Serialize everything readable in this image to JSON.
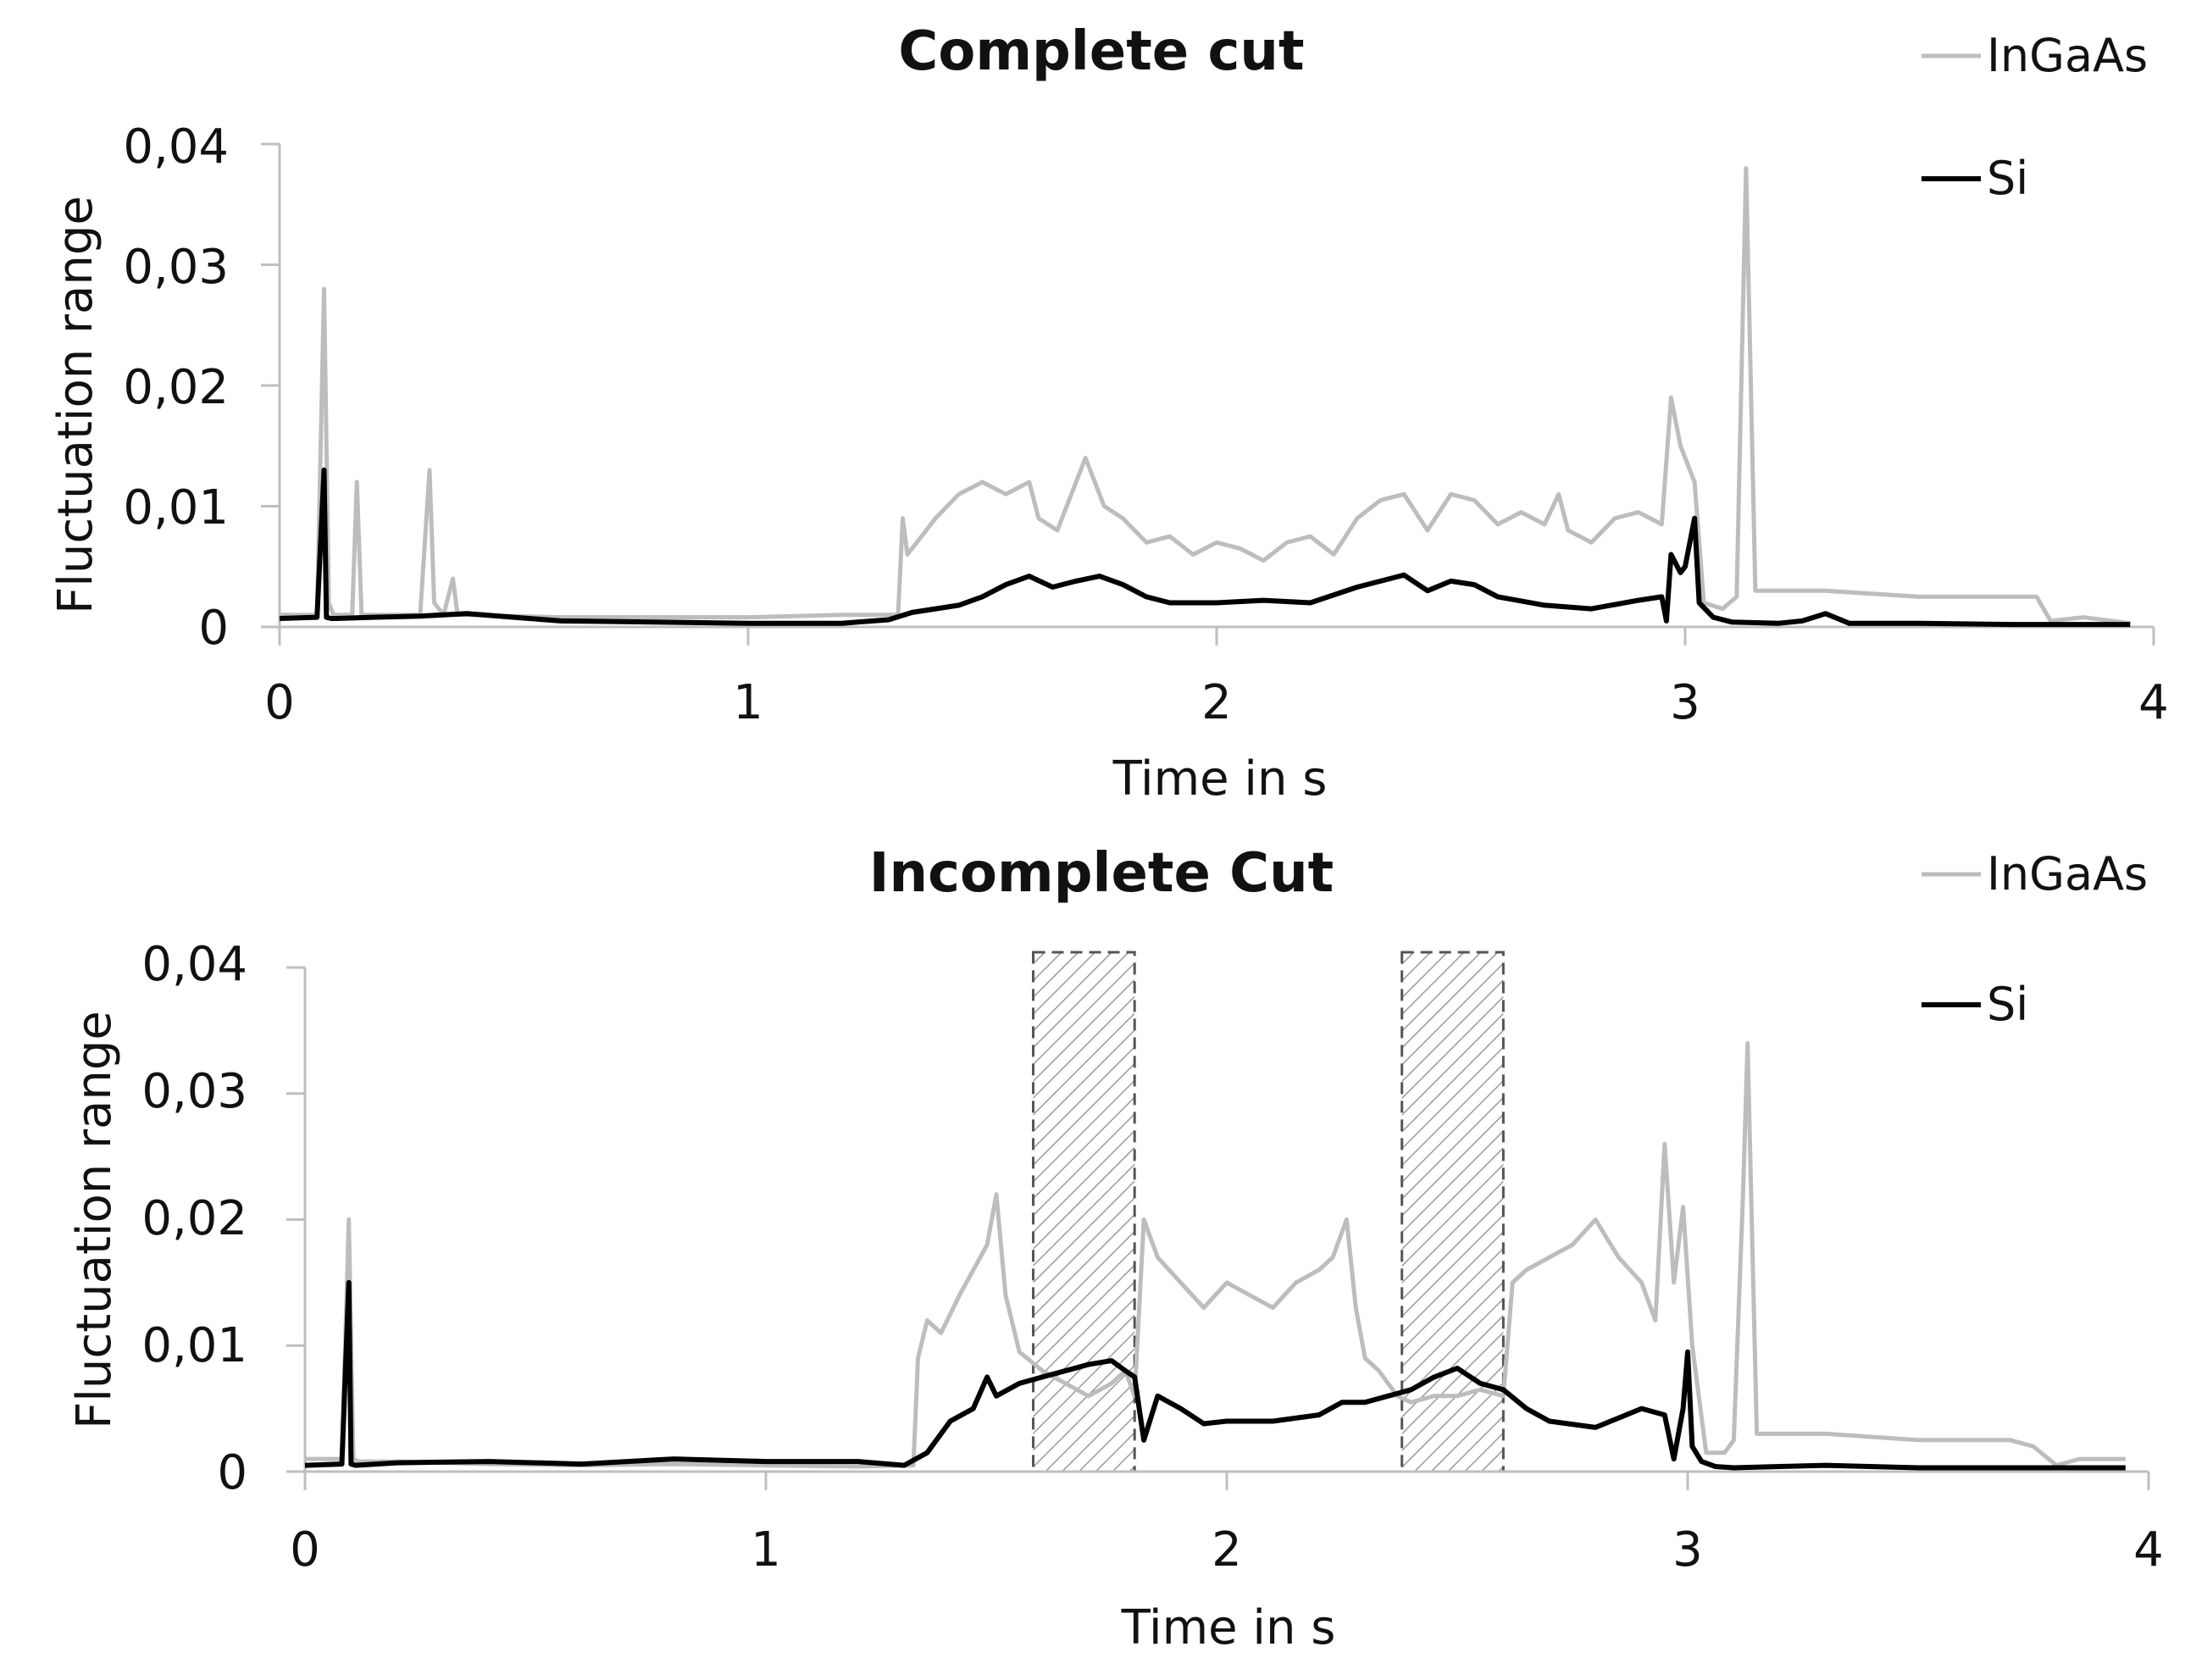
{
  "colors": {
    "ingaas": "#bdbdbd",
    "si": "#000000",
    "axis": "#bfbfbf",
    "hatch": "#9a9a9a"
  },
  "chart_data": [
    {
      "type": "line",
      "title": "Complete cut",
      "xlabel": "Time in s",
      "ylabel": "Fluctuation range",
      "xlim": [
        0,
        4
      ],
      "ylim": [
        0,
        0.04
      ],
      "x_ticks": [
        "0",
        "1",
        "2",
        "3",
        "4"
      ],
      "y_ticks": [
        "0",
        "0,01",
        "0,02",
        "0,03",
        "0,04"
      ],
      "legend": [
        "InGaAs",
        "Si"
      ],
      "legend_position": "top-right",
      "shaded_regions": [],
      "series": [
        {
          "name": "InGaAs",
          "x": [
            0,
            0.08,
            0.095,
            0.105,
            0.115,
            0.13,
            0.155,
            0.165,
            0.175,
            0.2,
            0.3,
            0.32,
            0.33,
            0.35,
            0.37,
            0.38,
            0.4,
            0.6,
            0.8,
            1.0,
            1.2,
            1.32,
            1.33,
            1.34,
            1.36,
            1.4,
            1.45,
            1.5,
            1.55,
            1.6,
            1.62,
            1.66,
            1.7,
            1.72,
            1.76,
            1.8,
            1.85,
            1.9,
            1.95,
            2.0,
            2.05,
            2.1,
            2.15,
            2.2,
            2.25,
            2.3,
            2.35,
            2.4,
            2.45,
            2.5,
            2.55,
            2.6,
            2.65,
            2.7,
            2.73,
            2.75,
            2.8,
            2.85,
            2.9,
            2.95,
            2.97,
            2.99,
            3.02,
            3.04,
            3.08,
            3.11,
            3.13,
            3.15,
            3.2,
            3.3,
            3.5,
            3.7,
            3.75,
            3.78,
            3.85,
            3.95
          ],
          "values": [
            0.001,
            0.001,
            0.028,
            0.002,
            0.001,
            0.001,
            0.001,
            0.012,
            0.001,
            0.001,
            0.001,
            0.013,
            0.002,
            0.001,
            0.004,
            0.001,
            0.001,
            0.0008,
            0.0008,
            0.0008,
            0.001,
            0.001,
            0.009,
            0.006,
            0.007,
            0.009,
            0.011,
            0.012,
            0.011,
            0.012,
            0.009,
            0.008,
            0.012,
            0.014,
            0.01,
            0.009,
            0.007,
            0.0075,
            0.006,
            0.007,
            0.0065,
            0.0055,
            0.007,
            0.0075,
            0.006,
            0.009,
            0.0105,
            0.011,
            0.008,
            0.011,
            0.0105,
            0.0085,
            0.0095,
            0.0085,
            0.011,
            0.008,
            0.007,
            0.009,
            0.0095,
            0.0085,
            0.019,
            0.015,
            0.012,
            0.002,
            0.0015,
            0.0025,
            0.038,
            0.003,
            0.003,
            0.003,
            0.0025,
            0.0025,
            0.0025,
            0.0005,
            0.0008,
            0.0003
          ]
        },
        {
          "name": "Si",
          "x": [
            0,
            0.08,
            0.095,
            0.1,
            0.11,
            0.12,
            0.2,
            0.3,
            0.4,
            0.5,
            0.6,
            0.8,
            1.0,
            1.2,
            1.3,
            1.35,
            1.45,
            1.5,
            1.55,
            1.6,
            1.65,
            1.7,
            1.75,
            1.8,
            1.85,
            1.9,
            2.0,
            2.1,
            2.2,
            2.3,
            2.35,
            2.4,
            2.45,
            2.5,
            2.55,
            2.6,
            2.7,
            2.8,
            2.9,
            2.95,
            2.96,
            2.97,
            2.99,
            3.0,
            3.02,
            3.03,
            3.06,
            3.1,
            3.2,
            3.25,
            3.3,
            3.35,
            3.5,
            3.7,
            3.9,
            3.95
          ],
          "values": [
            0.0007,
            0.0008,
            0.013,
            0.0008,
            0.0007,
            0.0007,
            0.0008,
            0.0009,
            0.0011,
            0.0008,
            0.0005,
            0.0004,
            0.0003,
            0.0003,
            0.0006,
            0.0012,
            0.0018,
            0.0025,
            0.0035,
            0.0042,
            0.0033,
            0.0038,
            0.0042,
            0.0035,
            0.0025,
            0.002,
            0.002,
            0.0022,
            0.002,
            0.0033,
            0.0038,
            0.0043,
            0.003,
            0.0038,
            0.0035,
            0.0025,
            0.0018,
            0.0015,
            0.0022,
            0.0025,
            0.0005,
            0.006,
            0.0045,
            0.005,
            0.009,
            0.002,
            0.0008,
            0.0004,
            0.0003,
            0.0005,
            0.0011,
            0.0003,
            0.0003,
            0.0002,
            0.0002,
            0.0002
          ]
        }
      ]
    },
    {
      "type": "line",
      "title": "Incomplete Cut",
      "xlabel": "Time in s",
      "ylabel": "Fluctuation range",
      "xlim": [
        0,
        4
      ],
      "ylim": [
        0,
        0.04
      ],
      "x_ticks": [
        "0",
        "1",
        "2",
        "3",
        "4"
      ],
      "y_ticks": [
        "0",
        "0,01",
        "0,02",
        "0,03",
        "0,04"
      ],
      "legend": [
        "InGaAs",
        "Si"
      ],
      "legend_position": "top-right",
      "shaded_regions": [
        [
          1.58,
          1.8
        ],
        [
          2.38,
          2.6
        ]
      ],
      "series": [
        {
          "name": "InGaAs",
          "x": [
            0,
            0.08,
            0.095,
            0.105,
            0.115,
            0.2,
            0.4,
            0.6,
            0.8,
            1.0,
            1.2,
            1.32,
            1.33,
            1.35,
            1.38,
            1.42,
            1.45,
            1.48,
            1.5,
            1.52,
            1.55,
            1.6,
            1.65,
            1.7,
            1.75,
            1.78,
            1.8,
            1.82,
            1.85,
            1.9,
            1.95,
            2.0,
            2.05,
            2.1,
            2.15,
            2.2,
            2.23,
            2.26,
            2.28,
            2.3,
            2.33,
            2.37,
            2.4,
            2.45,
            2.5,
            2.55,
            2.6,
            2.62,
            2.65,
            2.7,
            2.75,
            2.8,
            2.85,
            2.9,
            2.93,
            2.95,
            2.97,
            2.99,
            3.01,
            3.04,
            3.08,
            3.09,
            3.1,
            3.12,
            3.13,
            3.15,
            3.2,
            3.3,
            3.5,
            3.7,
            3.75,
            3.8,
            3.85,
            3.95
          ],
          "values": [
            0.001,
            0.001,
            0.02,
            0.001,
            0.0008,
            0.0008,
            0.0006,
            0.0005,
            0.0006,
            0.0005,
            0.0004,
            0.0005,
            0.009,
            0.012,
            0.011,
            0.014,
            0.016,
            0.018,
            0.022,
            0.014,
            0.0095,
            0.008,
            0.007,
            0.006,
            0.007,
            0.008,
            0.006,
            0.02,
            0.017,
            0.015,
            0.013,
            0.015,
            0.014,
            0.013,
            0.015,
            0.016,
            0.017,
            0.02,
            0.013,
            0.009,
            0.008,
            0.006,
            0.0055,
            0.006,
            0.006,
            0.0065,
            0.006,
            0.015,
            0.016,
            0.017,
            0.018,
            0.02,
            0.017,
            0.015,
            0.012,
            0.026,
            0.015,
            0.021,
            0.01,
            0.0015,
            0.0015,
            0.002,
            0.0025,
            0.022,
            0.034,
            0.003,
            0.003,
            0.003,
            0.0025,
            0.0025,
            0.002,
            0.0005,
            0.001,
            0.001
          ]
        },
        {
          "name": "Si",
          "x": [
            0,
            0.08,
            0.095,
            0.1,
            0.11,
            0.2,
            0.4,
            0.6,
            0.8,
            1.0,
            1.2,
            1.3,
            1.35,
            1.4,
            1.45,
            1.48,
            1.5,
            1.55,
            1.6,
            1.65,
            1.7,
            1.75,
            1.78,
            1.8,
            1.82,
            1.85,
            1.9,
            1.95,
            2.0,
            2.1,
            2.2,
            2.25,
            2.3,
            2.35,
            2.4,
            2.45,
            2.5,
            2.55,
            2.6,
            2.65,
            2.7,
            2.8,
            2.9,
            2.95,
            2.97,
            2.99,
            3.0,
            3.01,
            3.03,
            3.06,
            3.1,
            3.2,
            3.3,
            3.5,
            3.7,
            3.9,
            3.95
          ],
          "values": [
            0.0005,
            0.0006,
            0.015,
            0.0006,
            0.0005,
            0.0007,
            0.0008,
            0.0006,
            0.001,
            0.0008,
            0.0008,
            0.0005,
            0.0015,
            0.004,
            0.005,
            0.0075,
            0.006,
            0.007,
            0.0075,
            0.008,
            0.0085,
            0.0088,
            0.008,
            0.0075,
            0.0025,
            0.006,
            0.005,
            0.0038,
            0.004,
            0.004,
            0.0045,
            0.0055,
            0.0055,
            0.006,
            0.0065,
            0.0075,
            0.0082,
            0.007,
            0.0065,
            0.005,
            0.004,
            0.0035,
            0.005,
            0.0045,
            0.001,
            0.005,
            0.0095,
            0.002,
            0.0008,
            0.0004,
            0.0003,
            0.0004,
            0.0005,
            0.0003,
            0.0003,
            0.0003,
            0.0003
          ]
        }
      ]
    }
  ]
}
